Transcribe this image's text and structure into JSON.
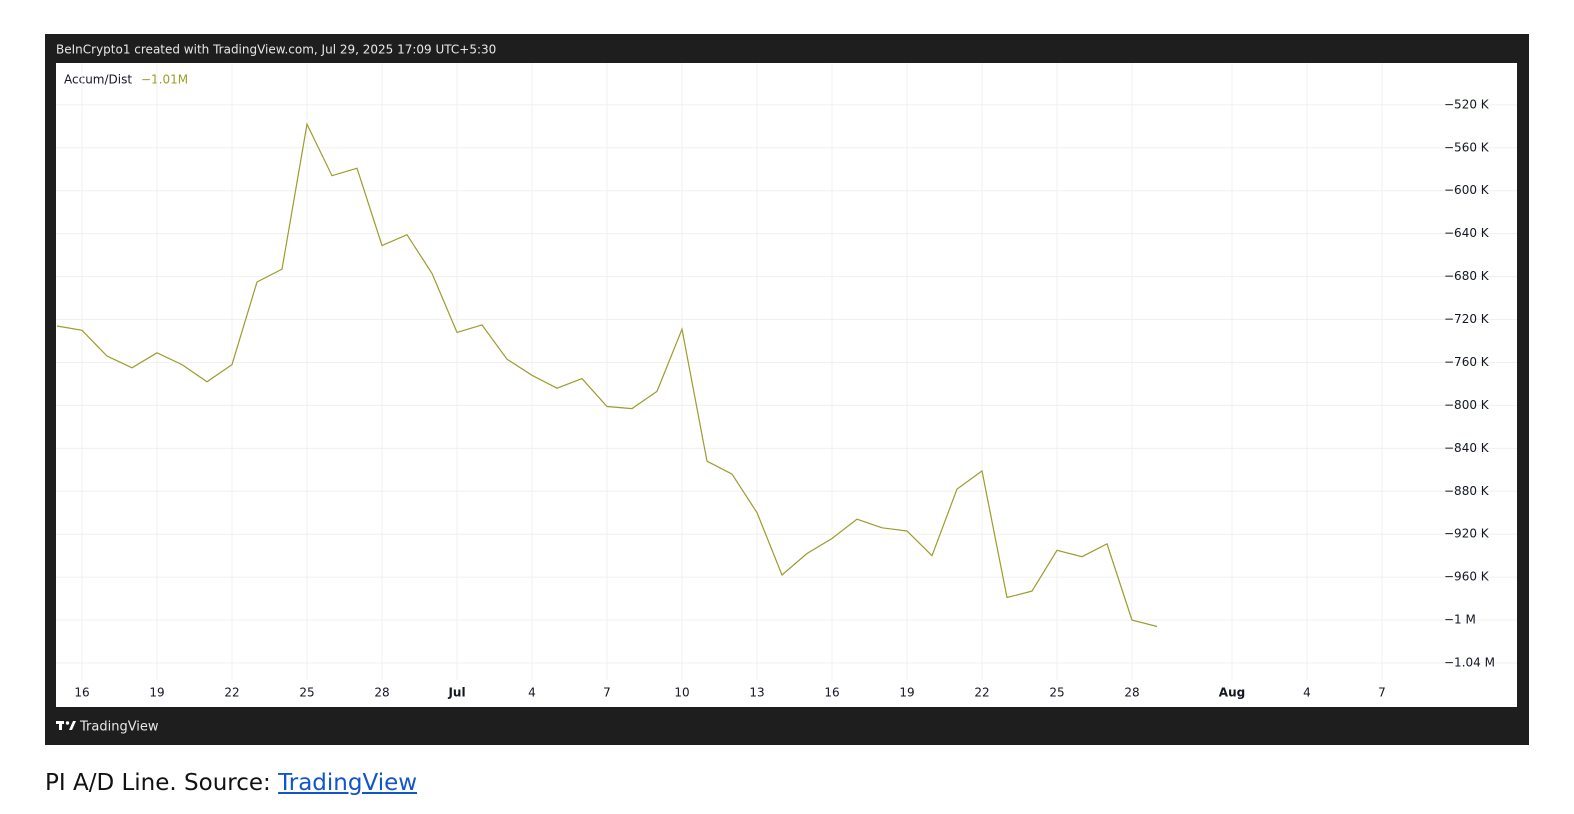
{
  "header": "BeInCrypto1 created with TradingView.com, Jul 29, 2025 17:09 UTC+5:30",
  "brand": "TradingView",
  "caption": {
    "text": "PI A/D Line. Source: ",
    "link": "TradingView"
  },
  "chart_data": {
    "type": "line",
    "indicator": "Accum/Dist",
    "last_value_label": "−1.01M",
    "xlim": [
      "2025-06-15",
      "2025-08-12"
    ],
    "ylim": [
      -1081000,
      -481000
    ],
    "grid": true,
    "xticks": [
      {
        "value": "2025-06-16",
        "label": "16"
      },
      {
        "value": "2025-06-19",
        "label": "19"
      },
      {
        "value": "2025-06-22",
        "label": "22"
      },
      {
        "value": "2025-06-25",
        "label": "25"
      },
      {
        "value": "2025-06-28",
        "label": "28"
      },
      {
        "value": "2025-07-01",
        "label": "Jul"
      },
      {
        "value": "2025-07-04",
        "label": "4"
      },
      {
        "value": "2025-07-07",
        "label": "7"
      },
      {
        "value": "2025-07-10",
        "label": "10"
      },
      {
        "value": "2025-07-13",
        "label": "13"
      },
      {
        "value": "2025-07-16",
        "label": "16"
      },
      {
        "value": "2025-07-19",
        "label": "19"
      },
      {
        "value": "2025-07-22",
        "label": "22"
      },
      {
        "value": "2025-07-25",
        "label": "25"
      },
      {
        "value": "2025-07-28",
        "label": "28"
      },
      {
        "value": "2025-08-01",
        "label": "Aug"
      },
      {
        "value": "2025-08-04",
        "label": "4"
      },
      {
        "value": "2025-08-07",
        "label": "7"
      }
    ],
    "yticks": [
      {
        "value": -520000,
        "label": "−520 K"
      },
      {
        "value": -560000,
        "label": "−560 K"
      },
      {
        "value": -600000,
        "label": "−600 K"
      },
      {
        "value": -640000,
        "label": "−640 K"
      },
      {
        "value": -680000,
        "label": "−680 K"
      },
      {
        "value": -720000,
        "label": "−720 K"
      },
      {
        "value": -760000,
        "label": "−760 K"
      },
      {
        "value": -800000,
        "label": "−800 K"
      },
      {
        "value": -840000,
        "label": "−840 K"
      },
      {
        "value": -880000,
        "label": "−880 K"
      },
      {
        "value": -920000,
        "label": "−920 K"
      },
      {
        "value": -960000,
        "label": "−960 K"
      },
      {
        "value": -1000000,
        "label": "−1 M"
      },
      {
        "value": -1040000,
        "label": "−1.04 M"
      }
    ],
    "x": [
      "2025-06-15",
      "2025-06-16",
      "2025-06-17",
      "2025-06-18",
      "2025-06-19",
      "2025-06-20",
      "2025-06-21",
      "2025-06-22",
      "2025-06-23",
      "2025-06-24",
      "2025-06-25",
      "2025-06-26",
      "2025-06-27",
      "2025-06-28",
      "2025-06-29",
      "2025-06-30",
      "2025-07-01",
      "2025-07-02",
      "2025-07-03",
      "2025-07-04",
      "2025-07-05",
      "2025-07-06",
      "2025-07-07",
      "2025-07-08",
      "2025-07-09",
      "2025-07-10",
      "2025-07-11",
      "2025-07-12",
      "2025-07-13",
      "2025-07-14",
      "2025-07-15",
      "2025-07-16",
      "2025-07-17",
      "2025-07-18",
      "2025-07-19",
      "2025-07-20",
      "2025-07-21",
      "2025-07-22",
      "2025-07-23",
      "2025-07-24",
      "2025-07-25",
      "2025-07-26",
      "2025-07-27",
      "2025-07-28",
      "2025-07-29"
    ],
    "series": [
      {
        "name": "Accum/Dist",
        "color": "#9c9c2c",
        "values": [
          -726000,
          -730000,
          -754000,
          -765000,
          -751000,
          -762000,
          -778000,
          -762000,
          -685000,
          -673000,
          -538000,
          -586000,
          -579000,
          -651000,
          -641000,
          -677000,
          -732000,
          -725000,
          -757000,
          -772000,
          -784000,
          -775000,
          -801000,
          -803000,
          -787000,
          -729000,
          -852000,
          -864000,
          -900000,
          -958000,
          -938000,
          -924000,
          -906000,
          -914000,
          -917000,
          -940000,
          -878000,
          -861000,
          -979000,
          -973000,
          -935000,
          -941000,
          -929000,
          -1000000,
          -1006000
        ]
      }
    ]
  }
}
